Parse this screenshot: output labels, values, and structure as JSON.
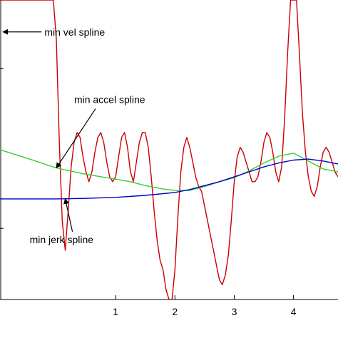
{
  "chart_data": {
    "type": "line",
    "xlim": [
      -0.95,
      4.75
    ],
    "ylim": [
      -2.2,
      3.9
    ],
    "grid": false,
    "x_ticks": [
      {
        "value": 1,
        "label": "1"
      },
      {
        "value": 2,
        "label": "2"
      },
      {
        "value": 3,
        "label": "3"
      },
      {
        "value": 4,
        "label": "4"
      }
    ],
    "series": [
      {
        "name": "min vel spline",
        "color": "#cc0000",
        "x": [
          -0.95,
          -0.9,
          -0.85,
          -0.8,
          -0.75,
          -0.7,
          -0.65,
          -0.6,
          -0.55,
          -0.5,
          -0.45,
          -0.4,
          -0.35,
          -0.3,
          -0.25,
          -0.2,
          -0.15,
          -0.1,
          -0.05,
          0.0,
          0.05,
          0.1,
          0.15,
          0.2,
          0.25,
          0.3,
          0.35,
          0.4,
          0.45,
          0.5,
          0.55,
          0.6,
          0.65,
          0.7,
          0.75,
          0.8,
          0.85,
          0.9,
          0.95,
          1.0,
          1.05,
          1.1,
          1.15,
          1.2,
          1.25,
          1.3,
          1.35,
          1.4,
          1.45,
          1.5,
          1.55,
          1.6,
          1.65,
          1.7,
          1.75,
          1.8,
          1.85,
          1.9,
          1.95,
          2.0,
          2.05,
          2.1,
          2.15,
          2.2,
          2.25,
          2.3,
          2.35,
          2.4,
          2.45,
          2.5,
          2.55,
          2.6,
          2.65,
          2.7,
          2.75,
          2.8,
          2.85,
          2.9,
          2.95,
          3.0,
          3.05,
          3.1,
          3.15,
          3.2,
          3.25,
          3.3,
          3.35,
          3.4,
          3.45,
          3.5,
          3.55,
          3.6,
          3.65,
          3.7,
          3.75,
          3.8,
          3.85,
          3.9,
          3.95,
          4.0,
          4.05,
          4.1,
          4.15,
          4.2,
          4.25,
          4.3,
          4.35,
          4.4,
          4.45,
          4.5,
          4.55,
          4.6,
          4.65,
          4.7,
          4.75
        ],
        "y": [
          3.9,
          3.9,
          3.9,
          3.9,
          3.9,
          3.9,
          3.9,
          3.9,
          3.9,
          3.9,
          3.9,
          3.9,
          3.9,
          3.9,
          3.9,
          3.9,
          3.9,
          3.9,
          3.9,
          3.1,
          1.0,
          -0.6,
          -1.2,
          -0.4,
          0.5,
          1.0,
          1.2,
          1.1,
          0.7,
          0.4,
          0.2,
          0.4,
          0.8,
          1.1,
          1.2,
          1.0,
          0.6,
          0.3,
          0.2,
          0.3,
          0.7,
          1.1,
          1.2,
          0.9,
          0.4,
          0.2,
          0.6,
          1.0,
          1.2,
          1.2,
          0.9,
          0.3,
          -0.4,
          -1.0,
          -1.4,
          -1.6,
          -2.0,
          -2.2,
          -2.2,
          -1.6,
          -0.5,
          0.4,
          0.9,
          1.1,
          0.9,
          0.6,
          0.3,
          0.1,
          0.0,
          -0.3,
          -0.6,
          -0.9,
          -1.2,
          -1.5,
          -1.8,
          -1.9,
          -1.7,
          -1.3,
          -0.6,
          0.2,
          0.7,
          0.9,
          0.8,
          0.6,
          0.4,
          0.2,
          0.2,
          0.3,
          0.6,
          1.0,
          1.2,
          1.1,
          0.8,
          0.4,
          0.2,
          0.5,
          1.5,
          2.8,
          3.9,
          3.9,
          3.9,
          2.8,
          1.6,
          0.8,
          0.3,
          0.0,
          -0.1,
          0.1,
          0.5,
          0.8,
          0.9,
          0.8,
          0.6,
          0.4,
          0.3
        ]
      },
      {
        "name": "min accel spline",
        "color": "#33cc33",
        "x": [
          -0.95,
          -0.5,
          0.0,
          0.5,
          1.0,
          1.25,
          1.5,
          1.8,
          2.0,
          2.25,
          2.5,
          2.75,
          3.0,
          3.25,
          3.5,
          3.75,
          4.0,
          4.25,
          4.5,
          4.75
        ],
        "y": [
          0.85,
          0.68,
          0.48,
          0.35,
          0.25,
          0.2,
          0.12,
          0.05,
          0.02,
          0.02,
          0.1,
          0.2,
          0.28,
          0.42,
          0.58,
          0.72,
          0.78,
          0.62,
          0.46,
          0.4
        ]
      },
      {
        "name": "min jerk spline",
        "color": "#0000cc",
        "x": [
          -0.95,
          -0.5,
          0.0,
          0.5,
          1.0,
          1.5,
          2.0,
          2.25,
          2.5,
          2.75,
          3.0,
          3.25,
          3.5,
          3.75,
          4.0,
          4.25,
          4.5,
          4.75
        ],
        "y": [
          -0.15,
          -0.15,
          -0.15,
          -0.14,
          -0.12,
          -0.08,
          -0.02,
          0.04,
          0.12,
          0.2,
          0.3,
          0.4,
          0.5,
          0.58,
          0.64,
          0.66,
          0.62,
          0.56
        ]
      }
    ],
    "annotations": [
      {
        "text": "min vel spline",
        "series": 0,
        "text_x": -0.2,
        "text_y": 3.25,
        "arrow_tip_x": -0.9,
        "arrow_tip_y": 3.25
      },
      {
        "text": "min accel spline",
        "series": 1,
        "text_x": 0.3,
        "text_y": 1.8,
        "arrow_tip_x": 0.0,
        "arrow_tip_y": 0.48
      },
      {
        "text": "min jerk spline",
        "series": 2,
        "text_x": -0.45,
        "text_y": -1.05,
        "arrow_tip_x": 0.15,
        "arrow_tip_y": -0.15
      }
    ]
  }
}
